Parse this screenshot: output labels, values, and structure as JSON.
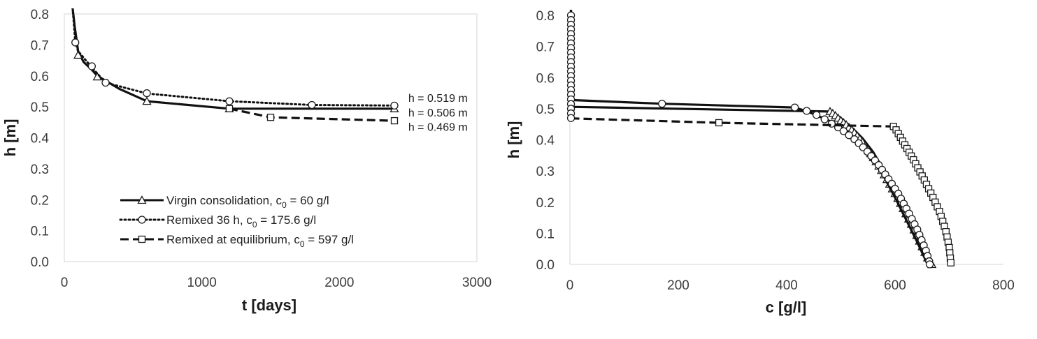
{
  "chart_data": [
    {
      "type": "line",
      "xlabel": "t [days]",
      "ylabel": "h [m]",
      "xlim": [
        0,
        3000
      ],
      "ylim": [
        0.0,
        0.8
      ],
      "x_ticks": [
        "0",
        "1000",
        "2000",
        "3000"
      ],
      "y_ticks": [
        "0.0",
        "0.1",
        "0.2",
        "0.3",
        "0.4",
        "0.5",
        "0.6",
        "0.7",
        "0.8"
      ],
      "grid": false,
      "legend_position": "bottom-left",
      "series": [
        {
          "name": "Virgin consolidation, c",
          "name_sub": "0",
          "name_suffix": " = 60 g/l",
          "style": "solid",
          "marker": "triangle",
          "line": [
            [
              60,
              0.82
            ],
            [
              75,
              0.76
            ],
            [
              100,
              0.68
            ],
            [
              140,
              0.645
            ],
            [
              200,
              0.62
            ],
            [
              240,
              0.6
            ],
            [
              400,
              0.558
            ],
            [
              600,
              0.518
            ],
            [
              1200,
              0.494
            ],
            [
              2400,
              0.494
            ]
          ],
          "markers": [
            [
              100,
              0.667
            ],
            [
              240,
              0.597
            ],
            [
              600,
              0.518
            ],
            [
              1200,
              0.494
            ],
            [
              2400,
              0.494
            ]
          ]
        },
        {
          "name": "Remixed 36 h, c",
          "name_sub": "0",
          "name_suffix": " = 175.6 g/l",
          "style": "dotted",
          "marker": "circle",
          "line": [
            [
              60,
              0.82
            ],
            [
              80,
              0.71
            ],
            [
              100,
              0.68
            ],
            [
              200,
              0.627
            ],
            [
              300,
              0.578
            ],
            [
              600,
              0.543
            ],
            [
              1200,
              0.518
            ],
            [
              1800,
              0.506
            ],
            [
              2400,
              0.504
            ]
          ],
          "markers": [
            [
              80,
              0.708
            ],
            [
              200,
              0.631
            ],
            [
              300,
              0.578
            ],
            [
              600,
              0.544
            ],
            [
              1200,
              0.518
            ],
            [
              1800,
              0.506
            ],
            [
              2400,
              0.504
            ]
          ]
        },
        {
          "name": "Remixed at equilibrium, c",
          "name_sub": "0",
          "name_suffix": " =  597 g/l",
          "style": "dashed",
          "marker": "square",
          "line": [
            [
              1200,
              0.494
            ],
            [
              1500,
              0.466
            ],
            [
              2400,
              0.455
            ]
          ],
          "markers": [
            [
              1200,
              0.494
            ],
            [
              1500,
              0.466
            ],
            [
              2400,
              0.455
            ]
          ]
        }
      ],
      "annotations": [
        {
          "text": "h = 0.519 m",
          "x": 2450,
          "y": 0.53
        },
        {
          "text": "h = 0.506 m",
          "x": 2450,
          "y": 0.482
        },
        {
          "text": "h = 0.469 m",
          "x": 2450,
          "y": 0.436
        }
      ]
    },
    {
      "type": "line",
      "xlabel": "c [g/l]",
      "ylabel": "h [m]",
      "xlim": [
        0,
        800
      ],
      "ylim": [
        0.0,
        0.8
      ],
      "x_ticks": [
        "0",
        "200",
        "400",
        "600",
        "800"
      ],
      "y_ticks": [
        "0.0",
        "0.1",
        "0.2",
        "0.3",
        "0.4",
        "0.5",
        "0.6",
        "0.7",
        "0.8"
      ],
      "grid": false,
      "series": [
        {
          "style": "solid",
          "marker": "triangle",
          "line": [
            [
              2,
              0.82
            ],
            [
              2,
              0.506
            ],
            [
              480,
              0.491
            ],
            [
              500,
              0.47
            ],
            [
              520,
              0.44
            ],
            [
              540,
              0.405
            ],
            [
              560,
              0.36
            ],
            [
              580,
              0.3
            ],
            [
              600,
              0.235
            ],
            [
              620,
              0.165
            ],
            [
              640,
              0.09
            ],
            [
              655,
              0.035
            ],
            [
              667,
              0.0
            ]
          ],
          "markers": [
            [
              480,
              0.491
            ],
            [
              485,
              0.485
            ],
            [
              490,
              0.478
            ],
            [
              495,
              0.47
            ],
            [
              500,
              0.462
            ],
            [
              505,
              0.455
            ],
            [
              510,
              0.448
            ],
            [
              515,
              0.44
            ],
            [
              520,
              0.432
            ],
            [
              525,
              0.423
            ],
            [
              530,
              0.413
            ],
            [
              535,
              0.403
            ],
            [
              540,
              0.392
            ],
            [
              545,
              0.38
            ],
            [
              550,
              0.368
            ],
            [
              555,
              0.356
            ],
            [
              560,
              0.343
            ],
            [
              565,
              0.33
            ],
            [
              570,
              0.316
            ],
            [
              575,
              0.302
            ],
            [
              580,
              0.288
            ],
            [
              585,
              0.273
            ],
            [
              590,
              0.258
            ],
            [
              595,
              0.243
            ],
            [
              600,
              0.228
            ],
            [
              605,
              0.212
            ],
            [
              610,
              0.196
            ],
            [
              615,
              0.18
            ],
            [
              620,
              0.163
            ],
            [
              625,
              0.146
            ],
            [
              630,
              0.129
            ],
            [
              635,
              0.111
            ],
            [
              640,
              0.093
            ],
            [
              645,
              0.075
            ],
            [
              650,
              0.057
            ],
            [
              655,
              0.039
            ],
            [
              660,
              0.021
            ],
            [
              665,
              0.006
            ],
            [
              668,
              0.0
            ]
          ]
        },
        {
          "style": "solid",
          "marker": "circle",
          "line": [
            [
              2,
              0.82
            ],
            [
              2,
              0.528
            ],
            [
              170,
              0.516
            ],
            [
              415,
              0.504
            ],
            [
              440,
              0.49
            ],
            [
              460,
              0.475
            ],
            [
              480,
              0.46
            ],
            [
              500,
              0.44
            ],
            [
              520,
              0.415
            ],
            [
              540,
              0.38
            ],
            [
              560,
              0.335
            ],
            [
              580,
              0.28
            ],
            [
              600,
              0.215
            ],
            [
              620,
              0.145
            ],
            [
              640,
              0.075
            ],
            [
              660,
              0.0
            ]
          ],
          "markers": [
            [
              170,
              0.516
            ],
            [
              415,
              0.504
            ],
            [
              437,
              0.493
            ],
            [
              455,
              0.48
            ],
            [
              470,
              0.466
            ],
            [
              483,
              0.452
            ],
            [
              495,
              0.44
            ],
            [
              505,
              0.428
            ],
            [
              515,
              0.415
            ],
            [
              525,
              0.402
            ],
            [
              533,
              0.389
            ],
            [
              541,
              0.376
            ],
            [
              549,
              0.362
            ],
            [
              556,
              0.348
            ],
            [
              563,
              0.334
            ],
            [
              570,
              0.319
            ],
            [
              576,
              0.304
            ],
            [
              582,
              0.289
            ],
            [
              588,
              0.274
            ],
            [
              594,
              0.259
            ],
            [
              600,
              0.243
            ],
            [
              606,
              0.227
            ],
            [
              611,
              0.211
            ],
            [
              616,
              0.195
            ],
            [
              621,
              0.179
            ],
            [
              626,
              0.163
            ],
            [
              631,
              0.146
            ],
            [
              636,
              0.129
            ],
            [
              641,
              0.112
            ],
            [
              645,
              0.095
            ],
            [
              649,
              0.078
            ],
            [
              653,
              0.061
            ],
            [
              657,
              0.044
            ],
            [
              660,
              0.027
            ],
            [
              663,
              0.01
            ],
            [
              664,
              0.0
            ]
          ]
        },
        {
          "style": "dashed",
          "marker": "square",
          "line": [
            [
              2,
              0.469
            ],
            [
              275,
              0.455
            ],
            [
              597,
              0.443
            ],
            [
              610,
              0.41
            ],
            [
              630,
              0.35
            ],
            [
              650,
              0.28
            ],
            [
              670,
              0.21
            ],
            [
              690,
              0.12
            ],
            [
              700,
              0.06
            ],
            [
              703,
              0.0
            ]
          ],
          "markers": [
            [
              275,
              0.455
            ],
            [
              597,
              0.443
            ],
            [
              602,
              0.432
            ],
            [
              606,
              0.42
            ],
            [
              610,
              0.408
            ],
            [
              614,
              0.396
            ],
            [
              618,
              0.384
            ],
            [
              622,
              0.372
            ],
            [
              626,
              0.36
            ],
            [
              630,
              0.348
            ],
            [
              634,
              0.336
            ],
            [
              638,
              0.323
            ],
            [
              642,
              0.31
            ],
            [
              646,
              0.297
            ],
            [
              650,
              0.284
            ],
            [
              654,
              0.271
            ],
            [
              658,
              0.257
            ],
            [
              662,
              0.243
            ],
            [
              666,
              0.229
            ],
            [
              670,
              0.215
            ],
            [
              674,
              0.2
            ],
            [
              678,
              0.185
            ],
            [
              682,
              0.17
            ],
            [
              685,
              0.154
            ],
            [
              688,
              0.138
            ],
            [
              691,
              0.122
            ],
            [
              694,
              0.105
            ],
            [
              696,
              0.088
            ],
            [
              698,
              0.071
            ],
            [
              700,
              0.054
            ],
            [
              701,
              0.037
            ],
            [
              702,
              0.02
            ],
            [
              703,
              0.005
            ]
          ]
        },
        {
          "style": "none",
          "marker": "circle",
          "markers": [
            [
              2,
              0.8
            ],
            [
              2,
              0.785
            ],
            [
              2,
              0.77
            ],
            [
              2,
              0.755
            ],
            [
              2,
              0.74
            ],
            [
              2,
              0.725
            ],
            [
              2,
              0.71
            ],
            [
              2,
              0.695
            ],
            [
              2,
              0.68
            ],
            [
              2,
              0.665
            ],
            [
              2,
              0.65
            ],
            [
              2,
              0.635
            ],
            [
              2,
              0.62
            ],
            [
              2,
              0.605
            ],
            [
              2,
              0.59
            ],
            [
              2,
              0.575
            ],
            [
              2,
              0.56
            ],
            [
              2,
              0.545
            ],
            [
              2,
              0.53
            ],
            [
              2,
              0.515
            ],
            [
              2,
              0.5
            ],
            [
              2,
              0.485
            ],
            [
              2,
              0.47
            ]
          ]
        }
      ]
    }
  ]
}
